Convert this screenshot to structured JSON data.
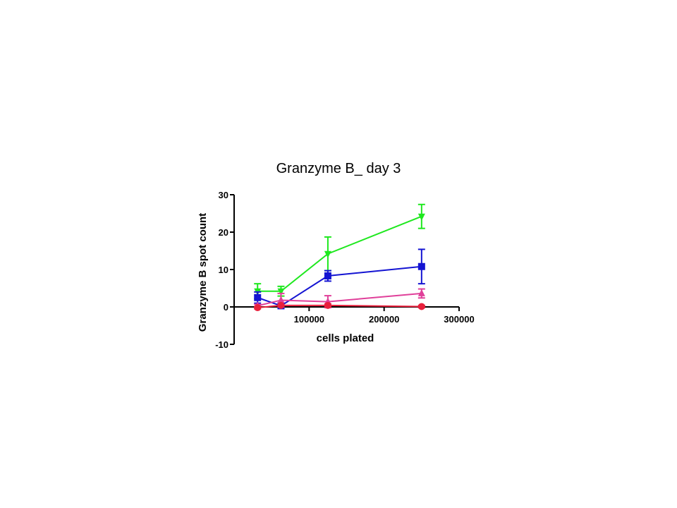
{
  "chart_data": {
    "type": "line",
    "title": "Granzyme B_ day 3",
    "xlabel": "cells plated",
    "ylabel": "Granzyme B spot count",
    "xlim": [
      0,
      300000
    ],
    "ylim": [
      -10,
      30
    ],
    "xticks": [
      100000,
      200000,
      300000
    ],
    "yticks": [
      -10,
      0,
      10,
      20,
      30
    ],
    "grid": false,
    "x": [
      31250,
      62500,
      125000,
      250000
    ],
    "series": [
      {
        "marker": "triangle-down",
        "color": "#1ee81e",
        "values": [
          4.2,
          4.2,
          14.2,
          24.2
        ],
        "errors": [
          2.0,
          1.3,
          4.5,
          3.2
        ]
      },
      {
        "marker": "square",
        "color": "#1414d2",
        "values": [
          2.5,
          0.3,
          8.3,
          10.8
        ],
        "errors": [
          1.5,
          0.6,
          1.4,
          4.6
        ]
      },
      {
        "marker": "triangle-up",
        "color": "#e0409a",
        "values": [
          0.3,
          1.8,
          1.4,
          3.6
        ],
        "errors": [
          0.4,
          1.8,
          1.6,
          1.2
        ]
      },
      {
        "marker": "circle",
        "color": "#e8203c",
        "values": [
          -0.2,
          0.4,
          0.4,
          0.1
        ],
        "errors": [
          0.3,
          0.3,
          0.4,
          0.3
        ]
      }
    ]
  }
}
